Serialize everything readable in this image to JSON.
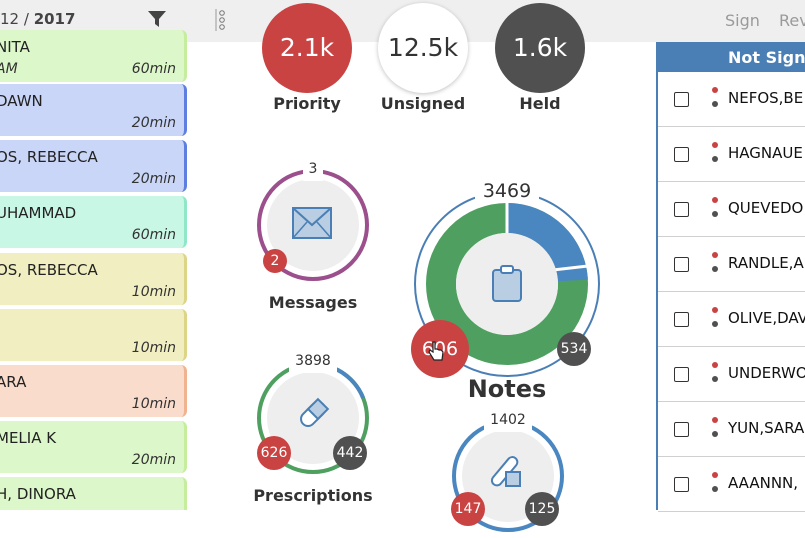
{
  "header": {
    "date_prefix": "12 / ",
    "date_year": "2017",
    "sign_label": "Sign",
    "review_label": "Rev"
  },
  "schedule": [
    {
      "name": "NITA",
      "sub": "AM",
      "duration": "60min",
      "color": "#dcf7c9",
      "border": "#c6ec9e"
    },
    {
      "name": "DAWN",
      "sub": "",
      "duration": "20min",
      "color": "#c9d6f7",
      "border": "#5f7fe0"
    },
    {
      "name": "OS, REBECCA",
      "sub": "",
      "duration": "20min",
      "color": "#c9d6f7",
      "border": "#5f7fe0"
    },
    {
      "name": "UHAMMAD",
      "sub": "",
      "duration": "60min",
      "color": "#c9f7e6",
      "border": "#8fe7c8"
    },
    {
      "name": "OS, REBECCA",
      "sub": "",
      "duration": "10min",
      "color": "#f1efc2",
      "border": "#dcd588"
    },
    {
      "name": "",
      "sub": "",
      "duration": "10min",
      "color": "#f1efc2",
      "border": "#dcd588"
    },
    {
      "name": "ARA",
      "sub": "",
      "duration": "10min",
      "color": "#f9dccb",
      "border": "#efb38f"
    },
    {
      "name": "MELIA K",
      "sub": "",
      "duration": "20min",
      "color": "#dcf7c9",
      "border": "#c6ec9e"
    },
    {
      "name": "H, DINORA",
      "sub": "",
      "duration": "",
      "color": "#dcf7c9",
      "border": "#c6ec9e"
    }
  ],
  "stats": {
    "priority": {
      "value": "2.1k",
      "label": "Priority",
      "color": "#c94343"
    },
    "unsigned": {
      "value": "12.5k",
      "label": "Unsigned",
      "color": "#ffffff"
    },
    "held": {
      "value": "1.6k",
      "label": "Held",
      "color": "#505050"
    }
  },
  "messages": {
    "label": "Messages",
    "count": "3",
    "badge_red": "2"
  },
  "notes": {
    "label": "Notes",
    "count": "3469",
    "badge_red": "606",
    "badge_dark": "534"
  },
  "prescriptions": {
    "label": "Prescriptions",
    "count": "3898",
    "badge_red": "626",
    "badge_dark": "442"
  },
  "labs": {
    "count": "1402",
    "badge_red": "147",
    "badge_dark": "125"
  },
  "right_panel": {
    "header": "Not Signed",
    "rows": [
      "NEFOS,BE",
      "HAGNAUE",
      "QUEVEDO",
      "RANDLE,A",
      "OLIVE,DAV",
      "UNDERWO",
      "YUN,SARA",
      "AAANNN,"
    ]
  }
}
